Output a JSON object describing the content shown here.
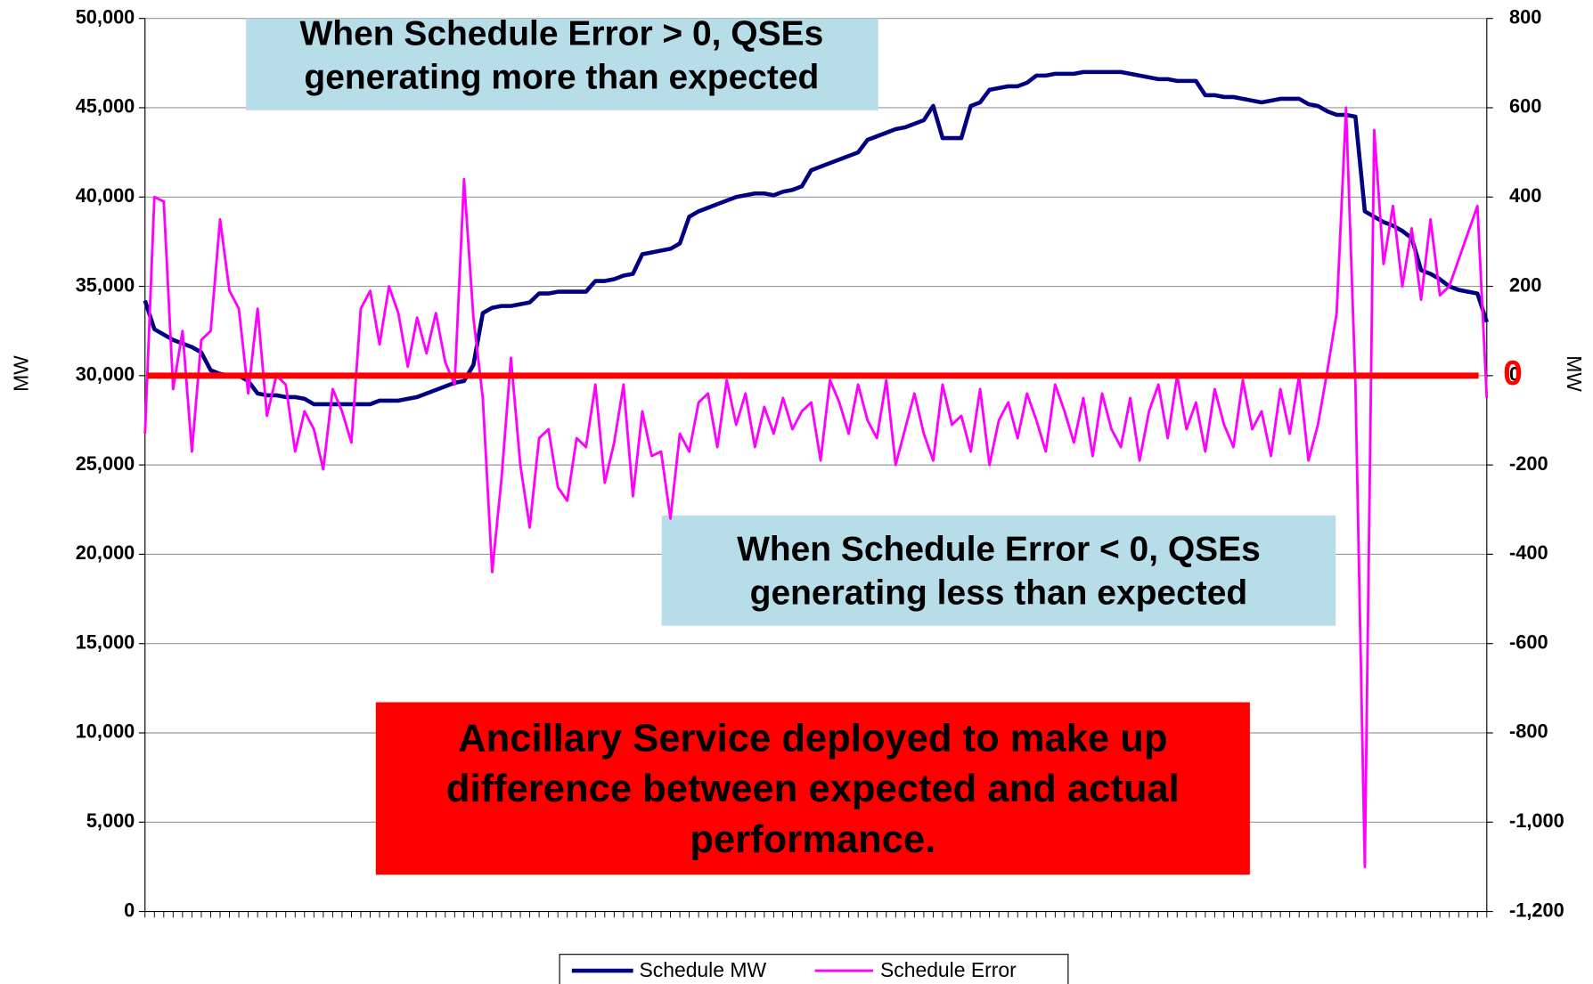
{
  "chart_data": {
    "type": "line",
    "y_label": "MW",
    "y2_label": "MW",
    "categories": [
      null,
      null,
      null,
      null,
      null,
      null,
      null,
      null,
      null,
      null,
      null,
      null,
      null,
      null,
      null,
      null,
      null,
      null,
      null,
      null,
      null,
      null,
      null,
      null,
      null,
      null,
      null,
      null,
      null,
      null,
      null,
      null,
      null,
      null,
      null,
      null,
      null,
      null,
      null,
      null,
      null,
      null,
      null,
      null,
      null,
      null,
      null,
      null,
      null,
      null,
      null,
      null,
      null,
      null,
      null,
      null,
      null,
      null,
      null,
      null,
      null,
      null,
      null,
      null,
      null,
      null,
      null,
      null,
      null,
      null,
      null,
      null,
      null,
      null,
      null,
      null,
      null,
      null,
      null,
      null,
      null,
      null,
      null,
      null,
      null,
      null,
      null,
      null,
      null,
      null,
      null,
      null,
      null,
      null,
      null,
      null,
      null,
      null,
      null,
      null,
      null,
      null,
      null,
      null,
      null,
      null,
      null,
      null,
      null,
      null,
      null,
      null,
      null,
      null,
      null,
      null,
      null,
      null,
      null,
      null,
      null,
      null,
      null,
      null,
      null,
      null,
      null,
      null,
      null,
      null,
      null,
      null,
      null,
      null,
      null,
      null,
      null,
      null,
      null,
      null,
      null,
      null,
      null,
      null
    ],
    "series": [
      {
        "name": "Schedule MW",
        "color": "#000080",
        "axis": "y",
        "values": [
          34200,
          32600,
          32300,
          32000,
          31800,
          31600,
          31300,
          30300,
          30100,
          30000,
          30000,
          29700,
          29000,
          28900,
          28900,
          28800,
          28800,
          28700,
          28400,
          28400,
          28400,
          28400,
          28400,
          28400,
          28400,
          28600,
          28600,
          28600,
          28700,
          28800,
          29000,
          29200,
          29400,
          29600,
          29700,
          30600,
          33500,
          33800,
          33900,
          33900,
          34000,
          34100,
          34600,
          34600,
          34700,
          34700,
          34700,
          34700,
          35300,
          35300,
          35400,
          35600,
          35700,
          36800,
          36900,
          37000,
          37100,
          37400,
          38900,
          39200,
          39400,
          39600,
          39800,
          40000,
          40100,
          40200,
          40200,
          40100,
          40300,
          40400,
          40600,
          41500,
          41700,
          41900,
          42100,
          42300,
          42500,
          43200,
          43400,
          43600,
          43800,
          43900,
          44100,
          44300,
          45100,
          43300,
          43300,
          43300,
          45100,
          45300,
          46000,
          46100,
          46200,
          46200,
          46400,
          46800,
          46800,
          46900,
          46900,
          46900,
          47000,
          47000,
          47000,
          47000,
          47000,
          46900,
          46800,
          46700,
          46600,
          46600,
          46500,
          46500,
          46500,
          45700,
          45700,
          45600,
          45600,
          45500,
          45400,
          45300,
          45400,
          45500,
          45500,
          45500,
          45200,
          45100,
          44800,
          44600,
          44600,
          44500,
          39200,
          38900,
          38600,
          38400,
          38100,
          37700,
          35900,
          35700,
          35400,
          35000,
          34800,
          34700,
          34600,
          33000
        ]
      },
      {
        "name": "Schedule Error",
        "color": "#ff00ff",
        "axis": "y2",
        "values": [
          -130,
          400,
          390,
          -30,
          100,
          -170,
          80,
          100,
          350,
          190,
          150,
          -40,
          150,
          -90,
          0,
          -20,
          -170,
          -80,
          -120,
          -210,
          -30,
          -80,
          -150,
          150,
          190,
          70,
          200,
          140,
          20,
          130,
          50,
          140,
          30,
          -20,
          440,
          130,
          -50,
          -440,
          -230,
          40,
          -200,
          -340,
          -140,
          -120,
          -250,
          -280,
          -140,
          -160,
          -20,
          -240,
          -150,
          -20,
          -270,
          -80,
          -180,
          -170,
          -320,
          -130,
          -170,
          -60,
          -40,
          -160,
          -10,
          -110,
          -40,
          -160,
          -70,
          -130,
          -50,
          -120,
          -80,
          -60,
          -190,
          -10,
          -60,
          -130,
          -20,
          -100,
          -140,
          -10,
          -200,
          -120,
          -40,
          -130,
          -190,
          -20,
          -110,
          -90,
          -170,
          -30,
          -200,
          -100,
          -60,
          -140,
          -40,
          -100,
          -170,
          -20,
          -80,
          -150,
          -50,
          -180,
          -40,
          -120,
          -160,
          -50,
          -190,
          -80,
          -20,
          -140,
          0,
          -120,
          -60,
          -170,
          -30,
          -110,
          -160,
          -10,
          -120,
          -80,
          -180,
          -30,
          -130,
          0,
          -190,
          -110,
          10,
          140,
          600,
          -20,
          -1100,
          550,
          250,
          380,
          200,
          330,
          170,
          350,
          180,
          200,
          260,
          320,
          380,
          -50
        ]
      }
    ],
    "ylim": [
      0,
      50000
    ],
    "yticks": [
      0,
      {
        "value": 5000,
        "label": "5,000"
      },
      {
        "value": 10000,
        "label": "10,000"
      },
      {
        "value": 15000,
        "label": "15,000"
      },
      {
        "value": 20000,
        "label": "20,000"
      },
      {
        "value": 25000,
        "label": "25,000"
      },
      {
        "value": 30000,
        "label": "30,000"
      },
      {
        "value": 35000,
        "label": "35,000"
      },
      {
        "value": 40000,
        "label": "40,000"
      },
      {
        "value": 45000,
        "label": "45,000"
      },
      {
        "value": 50000,
        "label": "50,000"
      }
    ],
    "y2lim": [
      -1200,
      800
    ],
    "y2ticks": [
      {
        "value": -1200,
        "label": "-1,200"
      },
      {
        "value": -1000,
        "label": "-1,000"
      },
      -800,
      -600,
      -400,
      -200,
      0,
      200,
      400,
      600,
      800
    ],
    "grid": true,
    "reference_line": {
      "value": 0,
      "axis": "y2",
      "color": "#ff0000"
    },
    "legend": "bottom",
    "annotations": [
      {
        "lines": [
          "When Schedule Error > 0, QSEs",
          "generating more than expected"
        ],
        "color": "#b7dde8"
      },
      {
        "lines": [
          "When Schedule Error < 0, QSEs",
          "generating less  than expected"
        ],
        "color": "#b7dde8"
      },
      {
        "lines": [
          "Ancillary Service deployed to make up",
          "difference between expected and actual",
          "performance."
        ],
        "color": "#ff0000"
      }
    ]
  }
}
